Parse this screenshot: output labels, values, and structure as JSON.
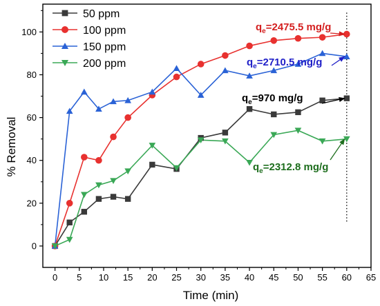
{
  "chart_data": {
    "type": "line",
    "title": "",
    "xlabel": "Time (min)",
    "ylabel": "% Removal",
    "xlim": [
      -2.5,
      65
    ],
    "ylim": [
      -10,
      113
    ],
    "xticks": [
      0,
      5,
      10,
      15,
      20,
      25,
      30,
      35,
      40,
      45,
      50,
      55,
      60,
      65
    ],
    "yticks": [
      0,
      20,
      40,
      60,
      80,
      100
    ],
    "grid": false,
    "legend_position": "top-left",
    "reference_line": {
      "x": 60,
      "style": "dotted"
    },
    "series": [
      {
        "name": "50 ppm",
        "color": "#3a3a3a",
        "marker": "square",
        "x": [
          0,
          3,
          6,
          9,
          12,
          15,
          20,
          25,
          30,
          35,
          40,
          45,
          50,
          55,
          60
        ],
        "y": [
          0,
          11,
          16,
          22,
          23,
          22,
          38,
          36,
          50.5,
          53,
          64,
          61.5,
          62.5,
          68,
          69
        ]
      },
      {
        "name": "100 ppm",
        "color": "#e8312f",
        "marker": "circle",
        "x": [
          0,
          3,
          6,
          9,
          12,
          15,
          20,
          25,
          30,
          35,
          40,
          45,
          50,
          55,
          60
        ],
        "y": [
          0,
          20,
          41.5,
          40,
          51,
          60,
          70.5,
          79,
          85,
          89,
          93.5,
          96,
          97,
          97.5,
          99
        ]
      },
      {
        "name": "150 ppm",
        "color": "#2a62d6",
        "marker": "triangle-up",
        "x": [
          0,
          3,
          6,
          9,
          12,
          15,
          20,
          25,
          30,
          35,
          40,
          45,
          50,
          55,
          60
        ],
        "y": [
          0,
          63,
          72,
          64,
          67.5,
          68,
          72,
          83,
          70.5,
          82,
          79.5,
          82,
          85,
          90,
          88.5
        ]
      },
      {
        "name": "200 ppm",
        "color": "#3aa856",
        "marker": "triangle-down",
        "x": [
          0,
          3,
          6,
          9,
          12,
          15,
          20,
          25,
          30,
          35,
          40,
          45,
          50,
          55,
          60
        ],
        "y": [
          0,
          3,
          24,
          28.5,
          30.5,
          35,
          47,
          36.5,
          49.5,
          49,
          39,
          52,
          54,
          49,
          50
        ]
      }
    ],
    "annotations": [
      {
        "label_main": "q",
        "label_sub": "e",
        "label_value": "=2475.5 mg/g",
        "color": "#d42020",
        "series": 1,
        "arrow": true
      },
      {
        "label_main": "q",
        "label_sub": "e",
        "label_value": "=2710.5 mg/g",
        "color": "#2020c8",
        "series": 2,
        "arrow": true
      },
      {
        "label_main": "q",
        "label_sub": "e",
        "label_value": "=970 mg/g",
        "color": "#000000",
        "series": 0,
        "arrow": true
      },
      {
        "label_main": "q",
        "label_sub": "e",
        "label_value": "=2312.8 mg/g",
        "color": "#1e6e1e",
        "series": 3,
        "arrow": true
      }
    ]
  }
}
